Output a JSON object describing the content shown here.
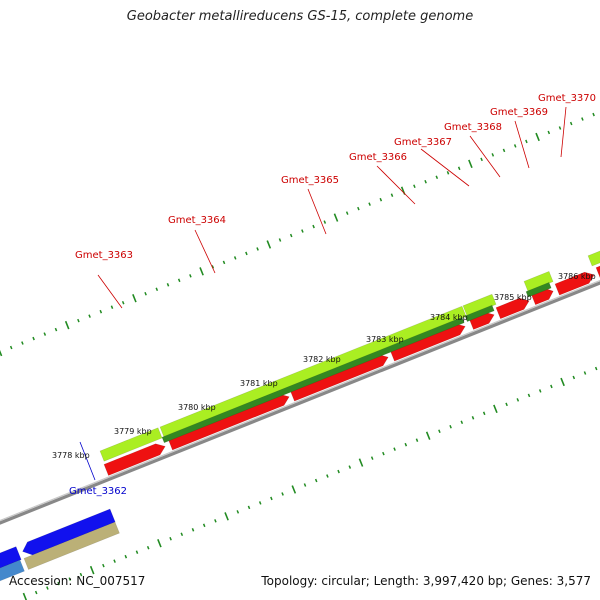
{
  "title": "Geobacter metallireducens GS-15, complete genome",
  "footer": {
    "accession": "Accession: NC_007517",
    "summary": "Topology: circular; Length: 3,997,420 bp; Genes: 3,577"
  },
  "colors": {
    "forward_cds": "#ee1111",
    "gene_light_green": "#aaee22",
    "gene_dark_green": "#338822",
    "reverse_cds": "#1111ee",
    "reverse_cds_light": "#4488cc",
    "gene_khaki": "#bbb077",
    "forward_label": "#cc0000",
    "reverse_label": "#0000cc",
    "backbone": "#888888",
    "tick": "#228b22"
  },
  "scale": {
    "labels": [
      "3778 kbp",
      "3779 kbp",
      "3780 kbp",
      "3781 kbp",
      "3782 kbp",
      "3783 kbp",
      "3784 kbp",
      "3785 kbp",
      "3786 kbp"
    ]
  },
  "genes": [
    {
      "name": "Gmet_3362",
      "strand": "reverse"
    },
    {
      "name": "Gmet_3363",
      "strand": "forward"
    },
    {
      "name": "Gmet_3364",
      "strand": "forward"
    },
    {
      "name": "Gmet_3365",
      "strand": "forward"
    },
    {
      "name": "Gmet_3366",
      "strand": "forward"
    },
    {
      "name": "Gmet_3367",
      "strand": "forward"
    },
    {
      "name": "Gmet_3368",
      "strand": "forward"
    },
    {
      "name": "Gmet_3369",
      "strand": "forward"
    },
    {
      "name": "Gmet_3370",
      "strand": "forward"
    }
  ]
}
